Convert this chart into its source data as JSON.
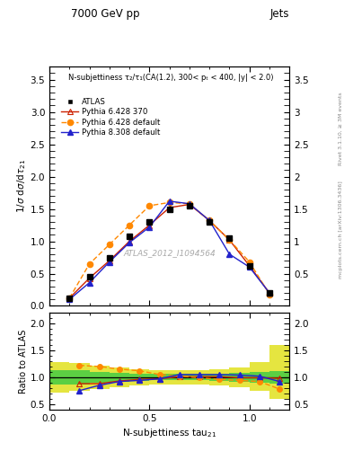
{
  "title_top": "7000 GeV pp",
  "title_right": "Jets",
  "annotation_main": "N-subjettiness τ₂/τ₁(CA(1.2), 300< pₜ < 400, |y| < 2.0)",
  "watermark": "ATLAS_2012_I1094564",
  "rivet_text": "Rivet 3.1.10, ≥ 3M events",
  "inspire_text": "mcplots.cern.ch [arXiv:1306.3436]",
  "atlas_x": [
    0.1,
    0.2,
    0.3,
    0.4,
    0.5,
    0.6,
    0.7,
    0.8,
    0.9,
    1.0,
    1.1
  ],
  "atlas_y": [
    0.12,
    0.45,
    0.75,
    1.07,
    1.3,
    1.5,
    1.55,
    1.3,
    1.05,
    0.62,
    0.2
  ],
  "p6_370_x": [
    0.1,
    0.2,
    0.3,
    0.4,
    0.5,
    0.6,
    0.7,
    0.8,
    0.9,
    1.0,
    1.1
  ],
  "p6_370_y": [
    0.12,
    0.43,
    0.7,
    1.0,
    1.25,
    1.52,
    1.57,
    1.32,
    1.02,
    0.62,
    0.2
  ],
  "p6_def_x": [
    0.1,
    0.2,
    0.3,
    0.4,
    0.5,
    0.6,
    0.7,
    0.8,
    0.9,
    1.0,
    1.1
  ],
  "p6_def_y": [
    0.12,
    0.65,
    0.95,
    1.25,
    1.55,
    1.6,
    1.58,
    1.32,
    1.02,
    0.68,
    0.18
  ],
  "p8_def_x": [
    0.1,
    0.2,
    0.3,
    0.4,
    0.5,
    0.6,
    0.7,
    0.8,
    0.9,
    1.0,
    1.1
  ],
  "p8_def_y": [
    0.1,
    0.36,
    0.68,
    0.98,
    1.22,
    1.62,
    1.58,
    1.32,
    0.8,
    0.6,
    0.2
  ],
  "ratio_x": [
    0.15,
    0.25,
    0.35,
    0.45,
    0.55,
    0.65,
    0.75,
    0.85,
    0.95,
    1.05,
    1.15
  ],
  "ratio_p6_370": [
    0.88,
    0.88,
    0.93,
    0.96,
    0.97,
    1.01,
    1.01,
    1.01,
    0.99,
    0.99,
    0.98
  ],
  "ratio_p6_def": [
    1.22,
    1.2,
    1.15,
    1.12,
    1.05,
    1.02,
    0.99,
    0.96,
    0.94,
    0.92,
    0.78
  ],
  "ratio_p8_def": [
    0.75,
    0.85,
    0.92,
    0.94,
    0.97,
    1.05,
    1.05,
    1.05,
    1.04,
    1.02,
    0.92
  ],
  "band_x": [
    0.0,
    0.1,
    0.2,
    0.3,
    0.4,
    0.5,
    0.6,
    0.7,
    0.8,
    0.9,
    1.0,
    1.1,
    1.2
  ],
  "band_ylo_g": [
    0.87,
    0.87,
    0.9,
    0.92,
    0.93,
    0.94,
    0.94,
    0.94,
    0.93,
    0.92,
    0.9,
    0.88,
    0.87
  ],
  "band_yhi_g": [
    1.13,
    1.13,
    1.1,
    1.08,
    1.07,
    1.06,
    1.06,
    1.06,
    1.07,
    1.08,
    1.1,
    1.12,
    1.13
  ],
  "band_ylo_y": [
    0.72,
    0.74,
    0.78,
    0.82,
    0.85,
    0.87,
    0.87,
    0.87,
    0.85,
    0.82,
    0.75,
    0.6,
    0.52
  ],
  "band_yhi_y": [
    1.28,
    1.26,
    1.22,
    1.18,
    1.15,
    1.13,
    1.13,
    1.13,
    1.15,
    1.18,
    1.28,
    1.6,
    2.15
  ],
  "color_atlas": "#000000",
  "color_p6_370": "#cc2200",
  "color_p6_def": "#ff8800",
  "color_p8_def": "#2222cc",
  "color_green": "#44cc44",
  "color_yellow": "#dddd00",
  "xlim": [
    0.0,
    1.2
  ],
  "ylim_main": [
    0.0,
    3.7
  ],
  "ylim_ratio": [
    0.4,
    2.2
  ],
  "yticks_main": [
    0.0,
    0.5,
    1.0,
    1.5,
    2.0,
    2.5,
    3.0,
    3.5
  ],
  "yticks_ratio": [
    0.5,
    1.0,
    1.5,
    2.0
  ],
  "xticks_main": [
    0.0,
    0.5,
    1.0
  ],
  "xticks_ratio": [
    0.0,
    0.5,
    1.0
  ]
}
